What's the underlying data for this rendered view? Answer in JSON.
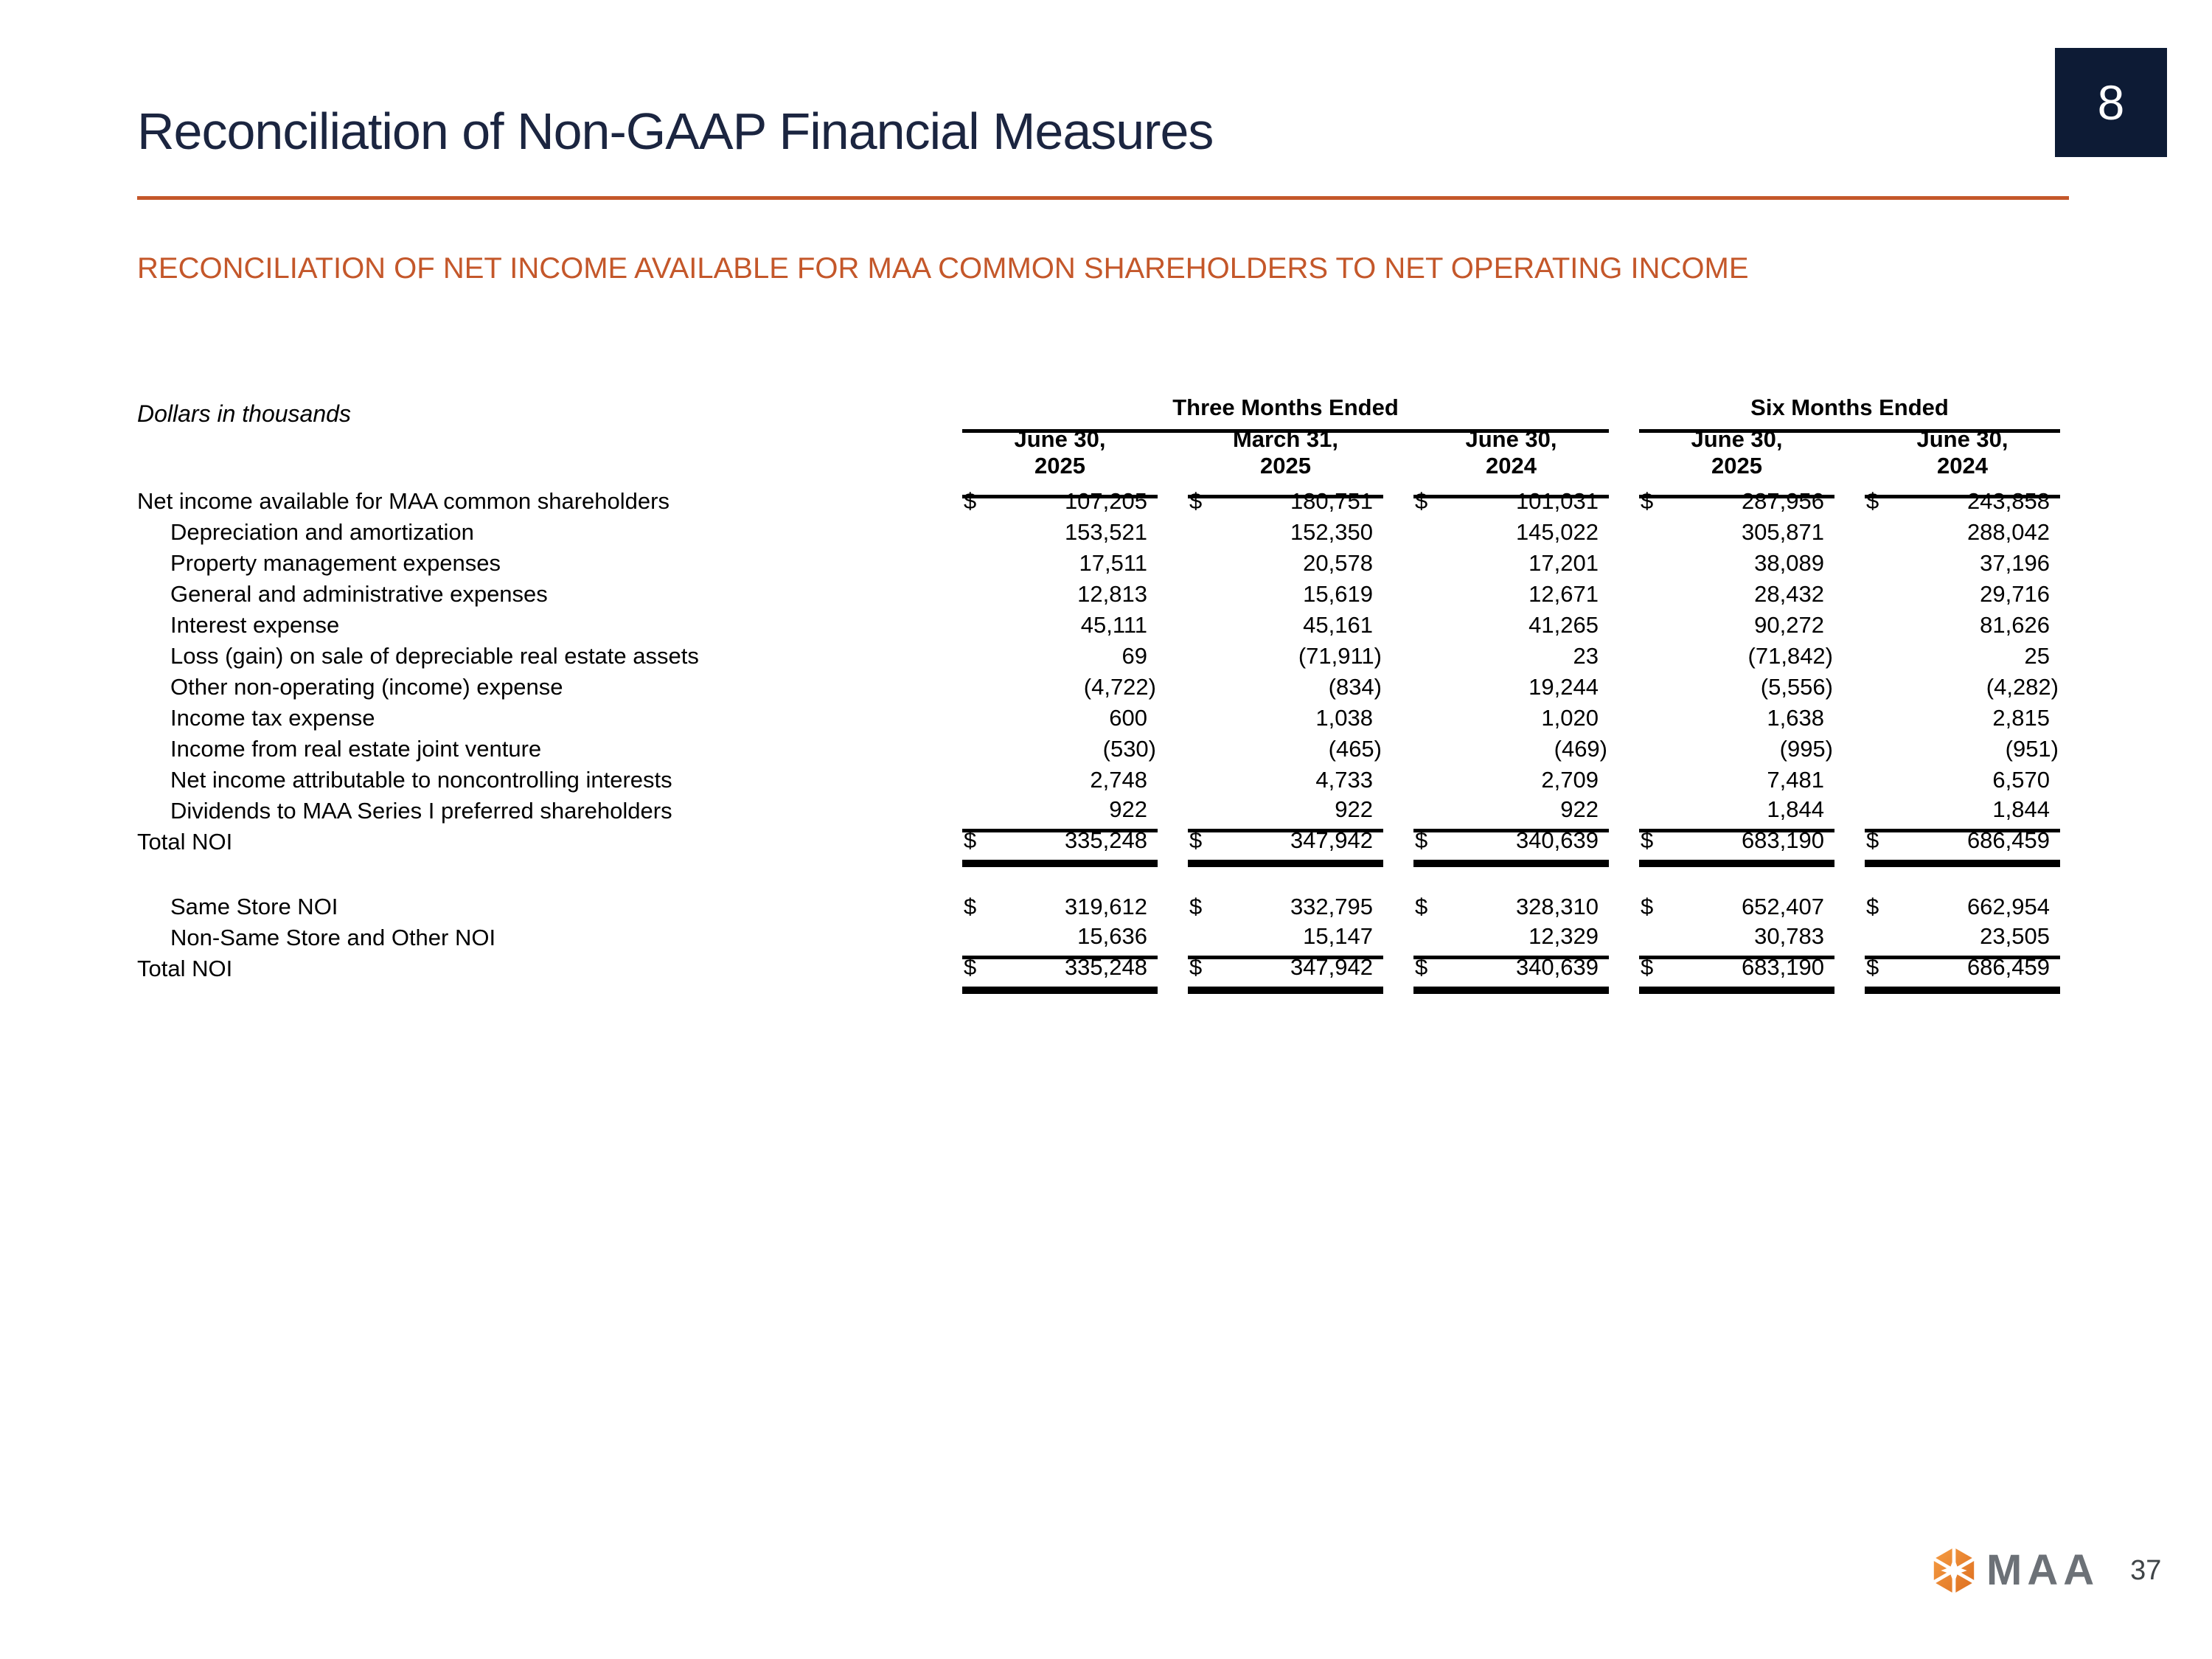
{
  "slide": {
    "corner_number": "8",
    "title": "Reconciliation of Non-GAAP Financial Measures",
    "section_heading": "RECONCILIATION OF NET INCOME AVAILABLE FOR MAA COMMON SHAREHOLDERS TO NET OPERATING INCOME",
    "footer": {
      "logo_text": "MAA",
      "page_number": "37"
    }
  },
  "colors": {
    "accent_orange": "#c4572a",
    "title_navy": "#1b2540",
    "corner_box_navy": "#0d1b35",
    "logo_orange": "#e87a25",
    "logo_gray": "#6c7177"
  },
  "table": {
    "units_note": "Dollars in thousands",
    "currency_symbol": "$",
    "col_groups": [
      {
        "label": "Three Months Ended",
        "columns": [
          {
            "month": "June 30,",
            "year": "2025"
          },
          {
            "month": "March 31,",
            "year": "2025"
          },
          {
            "month": "June 30,",
            "year": "2024"
          }
        ]
      },
      {
        "label": "Six Months Ended",
        "columns": [
          {
            "month": "June 30,",
            "year": "2025"
          },
          {
            "month": "June 30,",
            "year": "2024"
          }
        ]
      }
    ],
    "sections": [
      {
        "rows": [
          {
            "label": "Net income available for MAA common shareholders",
            "indent": false,
            "dollar": true,
            "values": [
              "107,205",
              "180,751",
              "101,031",
              "287,956",
              "243,858"
            ]
          },
          {
            "label": "Depreciation and amortization",
            "indent": true,
            "dollar": false,
            "values": [
              "153,521",
              "152,350",
              "145,022",
              "305,871",
              "288,042"
            ]
          },
          {
            "label": "Property management expenses",
            "indent": true,
            "dollar": false,
            "values": [
              "17,511",
              "20,578",
              "17,201",
              "38,089",
              "37,196"
            ]
          },
          {
            "label": "General and administrative expenses",
            "indent": true,
            "dollar": false,
            "values": [
              "12,813",
              "15,619",
              "12,671",
              "28,432",
              "29,716"
            ]
          },
          {
            "label": "Interest expense",
            "indent": true,
            "dollar": false,
            "values": [
              "45,111",
              "45,161",
              "41,265",
              "90,272",
              "81,626"
            ]
          },
          {
            "label": "Loss (gain) on sale of depreciable real estate assets",
            "indent": true,
            "dollar": false,
            "values": [
              "69",
              "(71,911)",
              "23",
              "(71,842)",
              "25"
            ]
          },
          {
            "label": "Other non-operating (income) expense",
            "indent": true,
            "dollar": false,
            "values": [
              "(4,722)",
              "(834)",
              "19,244",
              "(5,556)",
              "(4,282)"
            ]
          },
          {
            "label": "Income tax expense",
            "indent": true,
            "dollar": false,
            "values": [
              "600",
              "1,038",
              "1,020",
              "1,638",
              "2,815"
            ]
          },
          {
            "label": "Income from real estate joint venture",
            "indent": true,
            "dollar": false,
            "values": [
              "(530)",
              "(465)",
              "(469)",
              "(995)",
              "(951)"
            ]
          },
          {
            "label": "Net income attributable to noncontrolling interests",
            "indent": true,
            "dollar": false,
            "values": [
              "2,748",
              "4,733",
              "2,709",
              "7,481",
              "6,570"
            ]
          },
          {
            "label": "Dividends to MAA Series I preferred shareholders",
            "indent": true,
            "dollar": false,
            "values": [
              "922",
              "922",
              "922",
              "1,844",
              "1,844"
            ],
            "rule_below": "single"
          },
          {
            "label": "Total NOI",
            "indent": false,
            "dollar": true,
            "values": [
              "335,248",
              "347,942",
              "340,639",
              "683,190",
              "686,459"
            ],
            "rule_below": "double"
          }
        ]
      },
      {
        "rows": [
          {
            "label": "Same Store NOI",
            "indent": true,
            "dollar": true,
            "values": [
              "319,612",
              "332,795",
              "328,310",
              "652,407",
              "662,954"
            ]
          },
          {
            "label": "Non-Same Store and Other NOI",
            "indent": true,
            "dollar": false,
            "values": [
              "15,636",
              "15,147",
              "12,329",
              "30,783",
              "23,505"
            ],
            "rule_below": "single"
          },
          {
            "label": "Total NOI",
            "indent": false,
            "dollar": true,
            "values": [
              "335,248",
              "347,942",
              "340,639",
              "683,190",
              "686,459"
            ],
            "rule_below": "double"
          }
        ]
      }
    ]
  }
}
